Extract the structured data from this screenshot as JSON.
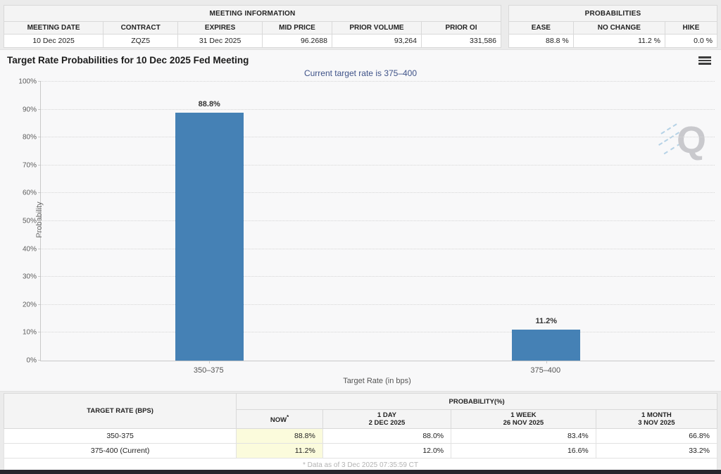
{
  "meeting_information": {
    "title": "MEETING INFORMATION",
    "columns": [
      "MEETING DATE",
      "CONTRACT",
      "EXPIRES",
      "MID PRICE",
      "PRIOR VOLUME",
      "PRIOR OI"
    ],
    "values": [
      "10 Dec 2025",
      "ZQZ5",
      "31 Dec 2025",
      "96.2688",
      "93,264",
      "331,586"
    ]
  },
  "probabilities_summary": {
    "title": "PROBABILITIES",
    "columns": [
      "EASE",
      "NO CHANGE",
      "HIKE"
    ],
    "values": [
      "88.8 %",
      "11.2 %",
      "0.0 %"
    ]
  },
  "chart_data": {
    "type": "bar",
    "title": "Target Rate Probabilities for 10 Dec 2025 Fed Meeting",
    "subtitle": "Current target rate is 375–400",
    "categories": [
      "350–375",
      "375–400"
    ],
    "values": [
      88.8,
      11.2
    ],
    "value_labels": [
      "88.8%",
      "11.2%"
    ],
    "xlabel": "Target Rate (in bps)",
    "ylabel": "Probability",
    "ylim": [
      0,
      100
    ],
    "ytick_labels": [
      "0%",
      "10%",
      "20%",
      "30%",
      "40%",
      "50%",
      "60%",
      "70%",
      "80%",
      "90%",
      "100%"
    ],
    "grid": "dotted-horizontal",
    "legend": "none",
    "bar_color": "#4581b5"
  },
  "watermark_letter": "Q",
  "probability_table": {
    "target_header": "TARGET RATE (BPS)",
    "group_header": "PROBABILITY(%)",
    "now_header": {
      "label": "NOW",
      "marker": "*"
    },
    "period_headers": [
      {
        "line1": "1 DAY",
        "line2": "2 DEC 2025"
      },
      {
        "line1": "1 WEEK",
        "line2": "26 NOV 2025"
      },
      {
        "line1": "1 MONTH",
        "line2": "3 NOV 2025"
      }
    ],
    "rows": [
      [
        "350-375",
        "88.8%",
        "88.0%",
        "83.4%",
        "66.8%"
      ],
      [
        "375-400 (Current)",
        "11.2%",
        "12.0%",
        "16.6%",
        "33.2%"
      ]
    ],
    "footnote": "* Data as of 3 Dec 2025 07:35:59 CT"
  },
  "colors": {
    "bar": "#4581b5",
    "subtitle_text": "#3e5288",
    "now_column_highlight": "#fbfbdc",
    "bottom_bar": "#26262e"
  }
}
